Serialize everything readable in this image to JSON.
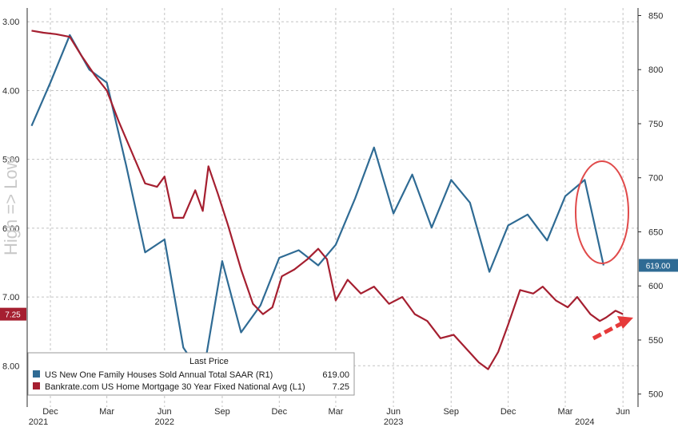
{
  "chart_data": {
    "type": "line",
    "ylabel": "High => Low",
    "x_ticks": [
      {
        "label": "Dec",
        "date": "2021-12"
      },
      {
        "label": "Mar",
        "date": "2022-03"
      },
      {
        "label": "Jun",
        "date": "2022-06"
      },
      {
        "label": "Sep",
        "date": "2022-09"
      },
      {
        "label": "Dec",
        "date": "2022-12"
      },
      {
        "label": "Mar",
        "date": "2023-03"
      },
      {
        "label": "Jun",
        "date": "2023-06"
      },
      {
        "label": "Sep",
        "date": "2023-09"
      },
      {
        "label": "Dec",
        "date": "2023-12"
      },
      {
        "label": "Mar",
        "date": "2024-03"
      },
      {
        "label": "Jun",
        "date": "2024-06"
      }
    ],
    "years": [
      {
        "label": "2021",
        "date": "2021-11"
      },
      {
        "label": "2022",
        "date": "2022-06"
      },
      {
        "label": "2023",
        "date": "2023-06"
      },
      {
        "label": "2024",
        "date": "2024-04"
      }
    ],
    "left_axis": {
      "ticks": [
        "3.00",
        "4.00",
        "5.00",
        "6.00",
        "7.00",
        "8.00"
      ],
      "lim": [
        8.6,
        2.8
      ],
      "inverted": true
    },
    "right_axis": {
      "ticks": [
        "500",
        "550",
        "600",
        "650",
        "700",
        "750",
        "800",
        "850"
      ],
      "lim": [
        488,
        857
      ]
    },
    "grid": true,
    "legend_title": "Last Price",
    "legend_position": "bottom-left",
    "series": [
      {
        "name": "US New One Family Houses Sold Annual Total SAAR (R1)",
        "axis": "right",
        "color": "#2f6b94",
        "last_value": "619.00",
        "points": [
          [
            "2021-11-01",
            748
          ],
          [
            "2021-12-01",
            788
          ],
          [
            "2022-01-01",
            832
          ],
          [
            "2022-02-01",
            800
          ],
          [
            "2022-03-01",
            788
          ],
          [
            "2022-04-01",
            711
          ],
          [
            "2022-05-01",
            631
          ],
          [
            "2022-06-01",
            643
          ],
          [
            "2022-07-01",
            543
          ],
          [
            "2022-08-01",
            516
          ],
          [
            "2022-09-01",
            623
          ],
          [
            "2022-10-01",
            557
          ],
          [
            "2022-11-01",
            582
          ],
          [
            "2022-12-01",
            626
          ],
          [
            "2023-01-01",
            633
          ],
          [
            "2023-02-01",
            619
          ],
          [
            "2023-03-01",
            638
          ],
          [
            "2023-04-01",
            681
          ],
          [
            "2023-05-01",
            728
          ],
          [
            "2023-06-01",
            667
          ],
          [
            "2023-07-01",
            703
          ],
          [
            "2023-08-01",
            654
          ],
          [
            "2023-09-01",
            698
          ],
          [
            "2023-10-01",
            677
          ],
          [
            "2023-11-01",
            613
          ],
          [
            "2023-12-01",
            656
          ],
          [
            "2024-01-01",
            666
          ],
          [
            "2024-02-01",
            642
          ],
          [
            "2024-03-01",
            683
          ],
          [
            "2024-04-01",
            698
          ],
          [
            "2024-05-01",
            619
          ]
        ]
      },
      {
        "name": "Bankrate.com US Home Mortgage 30 Year Fixed National Avg (L1)",
        "axis": "left",
        "color": "#a51f30",
        "last_value": "7.25",
        "points": [
          [
            "2021-11-01",
            3.13
          ],
          [
            "2021-11-20",
            3.16
          ],
          [
            "2021-12-10",
            3.18
          ],
          [
            "2022-01-01",
            3.22
          ],
          [
            "2022-01-20",
            3.5
          ],
          [
            "2022-02-10",
            3.78
          ],
          [
            "2022-03-01",
            4.0
          ],
          [
            "2022-03-20",
            4.45
          ],
          [
            "2022-04-10",
            4.9
          ],
          [
            "2022-05-01",
            5.35
          ],
          [
            "2022-05-20",
            5.4
          ],
          [
            "2022-06-01",
            5.25
          ],
          [
            "2022-06-15",
            5.85
          ],
          [
            "2022-07-01",
            5.85
          ],
          [
            "2022-07-20",
            5.45
          ],
          [
            "2022-08-01",
            5.75
          ],
          [
            "2022-08-10",
            5.1
          ],
          [
            "2022-08-25",
            5.5
          ],
          [
            "2022-09-10",
            5.95
          ],
          [
            "2022-10-01",
            6.6
          ],
          [
            "2022-10-20",
            7.1
          ],
          [
            "2022-11-05",
            7.25
          ],
          [
            "2022-11-20",
            7.15
          ],
          [
            "2022-12-05",
            6.7
          ],
          [
            "2022-12-25",
            6.6
          ],
          [
            "2023-01-15",
            6.45
          ],
          [
            "2023-02-01",
            6.3
          ],
          [
            "2023-02-15",
            6.45
          ],
          [
            "2023-03-01",
            7.05
          ],
          [
            "2023-03-20",
            6.75
          ],
          [
            "2023-04-10",
            6.95
          ],
          [
            "2023-05-01",
            6.85
          ],
          [
            "2023-05-25",
            7.1
          ],
          [
            "2023-06-15",
            7.0
          ],
          [
            "2023-07-05",
            7.25
          ],
          [
            "2023-07-25",
            7.35
          ],
          [
            "2023-08-15",
            7.6
          ],
          [
            "2023-09-05",
            7.55
          ],
          [
            "2023-09-25",
            7.75
          ],
          [
            "2023-10-15",
            7.95
          ],
          [
            "2023-10-30",
            8.05
          ],
          [
            "2023-11-15",
            7.8
          ],
          [
            "2023-12-01",
            7.4
          ],
          [
            "2023-12-20",
            6.9
          ],
          [
            "2024-01-10",
            6.95
          ],
          [
            "2024-01-25",
            6.85
          ],
          [
            "2024-02-15",
            7.05
          ],
          [
            "2024-03-05",
            7.15
          ],
          [
            "2024-03-20",
            7.0
          ],
          [
            "2024-04-10",
            7.25
          ],
          [
            "2024-04-25",
            7.35
          ],
          [
            "2024-05-05",
            7.3
          ],
          [
            "2024-05-20",
            7.2
          ],
          [
            "2024-06-01",
            7.25
          ]
        ]
      }
    ]
  }
}
